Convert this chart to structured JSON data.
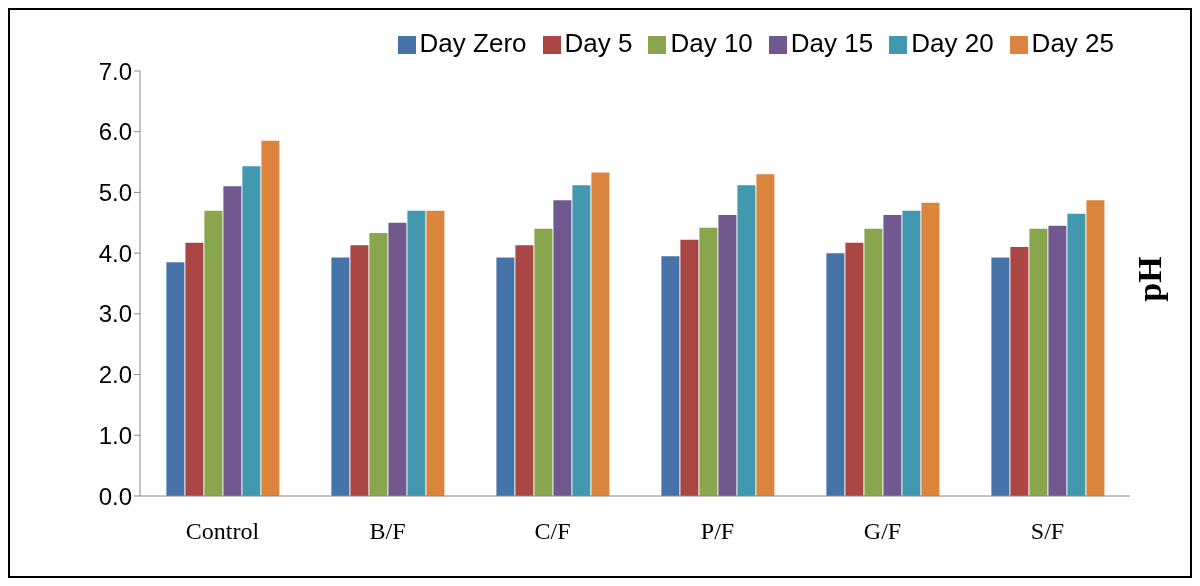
{
  "chart_data": {
    "type": "bar",
    "ylabel": "pH",
    "categories": [
      "Control",
      "B/F",
      "C/F",
      "P/F",
      "G/F",
      "S/F"
    ],
    "series": [
      {
        "name": "Day Zero",
        "color": "#4572a7",
        "values": [
          3.85,
          3.93,
          3.93,
          3.95,
          4.0,
          3.93
        ]
      },
      {
        "name": "Day 5",
        "color": "#aa4643",
        "values": [
          4.17,
          4.13,
          4.13,
          4.22,
          4.17,
          4.1
        ]
      },
      {
        "name": "Day 10",
        "color": "#89a54e",
        "values": [
          4.7,
          4.33,
          4.4,
          4.42,
          4.4,
          4.4
        ]
      },
      {
        "name": "Day 15",
        "color": "#71588f",
        "values": [
          5.1,
          4.5,
          4.87,
          4.63,
          4.63,
          4.45
        ]
      },
      {
        "name": "Day 20",
        "color": "#4198af",
        "values": [
          5.43,
          4.7,
          5.12,
          5.12,
          4.7,
          4.65
        ]
      },
      {
        "name": "Day 25",
        "color": "#db843d",
        "values": [
          5.85,
          4.7,
          5.33,
          5.3,
          4.83,
          4.87
        ]
      }
    ],
    "ylim": [
      0,
      7
    ],
    "yticks": [
      {
        "value": 0,
        "label": "0.0"
      },
      {
        "value": 1,
        "label": "1.0"
      },
      {
        "value": 2,
        "label": "2.0"
      },
      {
        "value": 3,
        "label": "3.0"
      },
      {
        "value": 4,
        "label": "4.0"
      },
      {
        "value": 5,
        "label": "5.0"
      },
      {
        "value": 6,
        "label": "6.0"
      },
      {
        "value": 7,
        "label": "7.0"
      }
    ],
    "legend": "top",
    "grid": false
  }
}
